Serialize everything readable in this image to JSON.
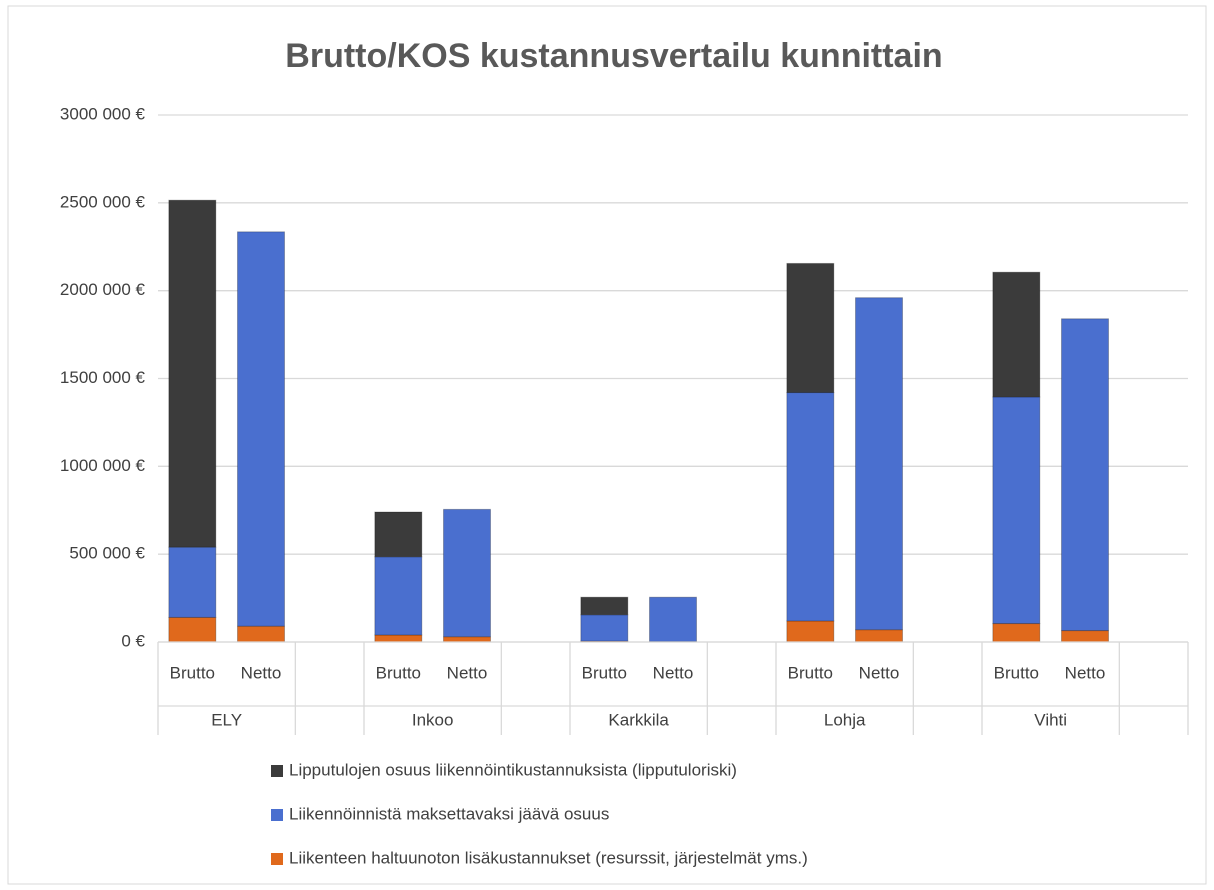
{
  "chart_data": {
    "type": "stacked-bar",
    "title": "Brutto/KOS kustannusvertailu kunnittain",
    "groups": [
      "ELY",
      "Inkoo",
      "Karkkila",
      "Lohja",
      "Vihti"
    ],
    "categories": [
      "Brutto",
      "Netto",
      "Brutto",
      "Netto",
      "Brutto",
      "Netto",
      "Brutto",
      "Netto",
      "Brutto",
      "Netto"
    ],
    "series": [
      {
        "name": "Liikenteen haltuunoton lisäkustannukset (resurssit, järjestelmät yms.)",
        "color": "#e0691c",
        "values": [
          140000,
          90000,
          40000,
          30000,
          5000,
          3000,
          120000,
          70000,
          105000,
          65000
        ]
      },
      {
        "name": "Liikennöinnistä maksettavaksi jäävä osuus",
        "color": "#4a6fcf",
        "values": [
          400000,
          2245000,
          445000,
          725000,
          150000,
          252000,
          1300000,
          1890000,
          1290000,
          1775000
        ]
      },
      {
        "name": "Lipputulojen osuus liikennöintikustannuksista (lipputuloriski)",
        "color": "#3b3b3b",
        "values": [
          1975000,
          0,
          255000,
          0,
          100000,
          0,
          735000,
          0,
          710000,
          0
        ]
      }
    ],
    "ylim": [
      0,
      3000000
    ],
    "yticks": [
      {
        "value": 0,
        "label": "0 €"
      },
      {
        "value": 500000,
        "label": "500 000 €"
      },
      {
        "value": 1000000,
        "label": "1000 000 €"
      },
      {
        "value": 1500000,
        "label": "1500 000 €"
      },
      {
        "value": 2000000,
        "label": "2000 000 €"
      },
      {
        "value": 2500000,
        "label": "2500 000 €"
      },
      {
        "value": 3000000,
        "label": "3000 000 €"
      }
    ],
    "grid": true
  }
}
